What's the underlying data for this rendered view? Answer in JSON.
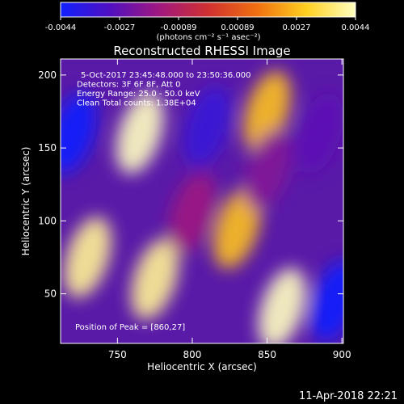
{
  "chart_data": {
    "type": "heatmap",
    "title": "Reconstructed RHESSI Image",
    "xlabel": "Heliocentric X (arcsec)",
    "ylabel": "Heliocentric Y (arcsec)",
    "xlim": [
      712,
      901
    ],
    "ylim": [
      16,
      211
    ],
    "xticks": [
      "750",
      "800",
      "850",
      "900"
    ],
    "yticks": [
      "50",
      "100",
      "150",
      "200"
    ],
    "colorbar": {
      "ticks": [
        "-0.0044",
        "-0.0027",
        "-0.00089",
        "0.00089",
        "0.0027",
        "0.0044"
      ],
      "vmin": -0.0044,
      "vmax": 0.0044,
      "unit_label": "(photons cm⁻² s⁻¹ asec⁻²)",
      "colors": [
        "#1020ff",
        "#5010c0",
        "#a01880",
        "#d03030",
        "#f07010",
        "#ffd020",
        "#ffffc0"
      ]
    },
    "annotations": [
      "5-Oct-2017 23:45:48.000 to 23:50:36.000",
      "Detectors: 3F 6F 8F, Att 0",
      "Energy Range: 25.0 - 50.0 keV",
      "Clean    Total counts: 1.38E+04"
    ],
    "peak_label": "Position of Peak = [860,27]",
    "peak": [
      860,
      27
    ],
    "bands": [
      {
        "x": 720,
        "y": 160,
        "value": -0.0044
      },
      {
        "x": 765,
        "y": 160,
        "value": 0.0044
      },
      {
        "x": 810,
        "y": 165,
        "value": -0.0035
      },
      {
        "x": 850,
        "y": 175,
        "value": 0.0027
      },
      {
        "x": 885,
        "y": 160,
        "value": -0.0027
      },
      {
        "x": 730,
        "y": 75,
        "value": 0.004
      },
      {
        "x": 775,
        "y": 60,
        "value": 0.004
      },
      {
        "x": 800,
        "y": 105,
        "value": -0.0015
      },
      {
        "x": 830,
        "y": 95,
        "value": 0.0027
      },
      {
        "x": 860,
        "y": 40,
        "value": 0.0044
      },
      {
        "x": 895,
        "y": 45,
        "value": -0.0044
      },
      {
        "x": 850,
        "y": 135,
        "value": -0.002
      }
    ]
  },
  "timestamp": "11-Apr-2018 22:21"
}
